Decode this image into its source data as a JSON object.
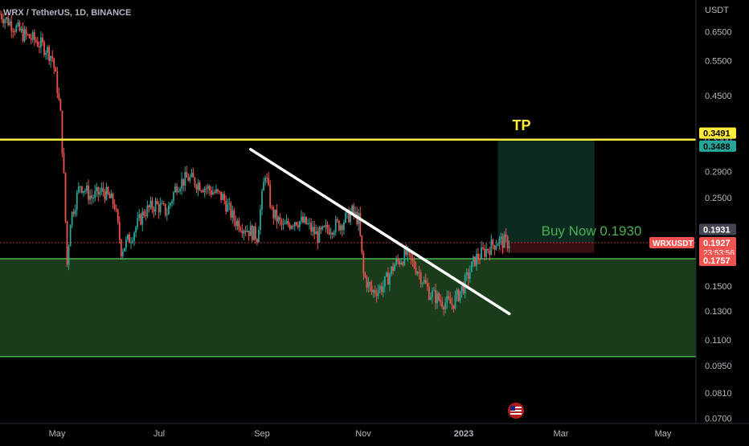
{
  "header": {
    "symbol_title": "WRX / TetherUS, 1D, BINANCE"
  },
  "colors": {
    "background": "#000000",
    "up": "#26a69a",
    "down": "#ef5350",
    "tp_line": "#ffeb3b",
    "support_zone": "#1e4620",
    "support_border": "#4caf50",
    "trendline": "#ffffff",
    "target_box": "#0b2a22",
    "stop_box": "#3a0d12",
    "axis_text": "#b2b5be"
  },
  "annotations": {
    "tp_label": "TP",
    "buy_label": "Buy Now 0.1930",
    "countdown": "23:53:56",
    "watermark_icon": "us-flag-icon"
  },
  "price_labels": [
    {
      "name": "tp-upper",
      "value": "0.3491",
      "bg": "#ffeb3b",
      "fg": "#000000"
    },
    {
      "name": "tp-lower",
      "value": "0.3488",
      "bg": "#26a69a",
      "fg": "#000000"
    },
    {
      "name": "entry",
      "value": "0.1931",
      "bg": "#434651",
      "fg": "#ffffff"
    },
    {
      "name": "last",
      "value": "0.1927",
      "bg": "#ef5350",
      "fg": "#ffffff",
      "symbol": "WRXUSDT"
    },
    {
      "name": "support-top",
      "value": "0.1757",
      "bg": "#ef5350",
      "fg": "#ffffff"
    }
  ],
  "chart_data": {
    "type": "candlestick",
    "title": "WRX / TetherUS, 1D, BINANCE",
    "y_axis": {
      "unit_label": "USDT",
      "scale": "log",
      "range": [
        0.068,
        0.78
      ],
      "ticks": [
        "0.6500",
        "0.5500",
        "0.4500",
        "0.3500",
        "0.2900",
        "0.2500",
        "0.1931",
        "0.1500",
        "0.1300",
        "0.1100",
        "0.0950",
        "0.0810",
        "0.0700"
      ]
    },
    "x_axis": {
      "ticks": [
        "May",
        "Jul",
        "Sep",
        "Nov",
        "2023",
        "Mar",
        "May"
      ],
      "range": [
        "2022-04-01",
        "2023-05-31"
      ]
    },
    "levels": {
      "take_profit": 0.349,
      "support_zone": [
        0.1,
        0.1757
      ],
      "entry": 0.193,
      "stop": 0.182
    },
    "trendline": {
      "start": [
        "2022-09-01",
        0.33
      ],
      "end": [
        "2023-02-06",
        0.128
      ]
    },
    "target_box": {
      "from": "2023-01-30",
      "to": "2023-03-30",
      "top": 0.3488,
      "bottom": 0.193
    },
    "price_path": [
      [
        "2022-04-01",
        0.72
      ],
      [
        "2022-04-08",
        0.68
      ],
      [
        "2022-04-15",
        0.64
      ],
      [
        "2022-04-22",
        0.62
      ],
      [
        "2022-04-29",
        0.59
      ],
      [
        "2022-05-03",
        0.56
      ],
      [
        "2022-05-06",
        0.47
      ],
      [
        "2022-05-08",
        0.4
      ],
      [
        "2022-05-10",
        0.28
      ],
      [
        "2022-05-12",
        0.17
      ],
      [
        "2022-05-14",
        0.22
      ],
      [
        "2022-05-20",
        0.27
      ],
      [
        "2022-05-27",
        0.25
      ],
      [
        "2022-06-03",
        0.26
      ],
      [
        "2022-06-10",
        0.24
      ],
      [
        "2022-06-14",
        0.185
      ],
      [
        "2022-06-20",
        0.2
      ],
      [
        "2022-06-28",
        0.23
      ],
      [
        "2022-07-05",
        0.24
      ],
      [
        "2022-07-12",
        0.23
      ],
      [
        "2022-07-18",
        0.27
      ],
      [
        "2022-07-25",
        0.28
      ],
      [
        "2022-08-01",
        0.27
      ],
      [
        "2022-08-08",
        0.26
      ],
      [
        "2022-08-15",
        0.25
      ],
      [
        "2022-08-22",
        0.22
      ],
      [
        "2022-08-29",
        0.21
      ],
      [
        "2022-09-05",
        0.2
      ],
      [
        "2022-09-10",
        0.29
      ],
      [
        "2022-09-14",
        0.23
      ],
      [
        "2022-09-21",
        0.21
      ],
      [
        "2022-09-28",
        0.22
      ],
      [
        "2022-10-05",
        0.215
      ],
      [
        "2022-10-12",
        0.2
      ],
      [
        "2022-10-19",
        0.21
      ],
      [
        "2022-10-26",
        0.215
      ],
      [
        "2022-11-02",
        0.23
      ],
      [
        "2022-11-06",
        0.22
      ],
      [
        "2022-11-09",
        0.16
      ],
      [
        "2022-11-14",
        0.145
      ],
      [
        "2022-11-21",
        0.15
      ],
      [
        "2022-11-28",
        0.17
      ],
      [
        "2022-12-05",
        0.18
      ],
      [
        "2022-12-12",
        0.165
      ],
      [
        "2022-12-19",
        0.145
      ],
      [
        "2022-12-26",
        0.138
      ],
      [
        "2023-01-02",
        0.135
      ],
      [
        "2023-01-09",
        0.15
      ],
      [
        "2023-01-16",
        0.175
      ],
      [
        "2023-01-23",
        0.185
      ],
      [
        "2023-01-30",
        0.195
      ],
      [
        "2023-02-06",
        0.1927
      ]
    ]
  }
}
